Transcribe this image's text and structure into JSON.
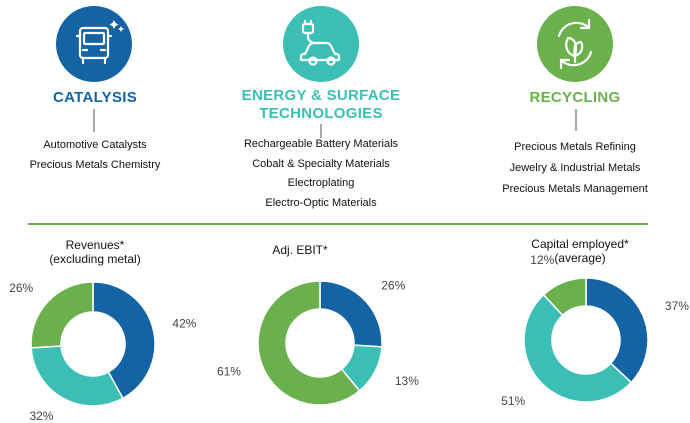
{
  "segments": [
    {
      "title": "CATALYSIS",
      "title_lines": [
        "CATALYSIS"
      ],
      "color": "#1464a5",
      "icon": "truck-icon",
      "items": [
        "Automotive Catalysts",
        "Precious Metals Chemistry"
      ]
    },
    {
      "title": "ENERGY & SURFACE TECHNOLOGIES",
      "title_lines": [
        "ENERGY & SURFACE",
        "TECHNOLOGIES"
      ],
      "color": "#3bbfb5",
      "icon": "electric-car-icon",
      "items": [
        "Rechargeable Battery Materials",
        "Cobalt & Specialty Materials",
        "Electroplating",
        "Electro-Optic Materials"
      ]
    },
    {
      "title": "RECYCLING",
      "title_lines": [
        "RECYCLING"
      ],
      "color": "#6ab04c",
      "icon": "recycle-leaf-icon",
      "items": [
        "Precious Metals Refining",
        "Jewelry & Industrial Metals",
        "Precious Metals Management"
      ]
    }
  ],
  "colors": {
    "catalysis": "#1464a5",
    "energy": "#3bbfb5",
    "recycling": "#6ab04c",
    "divider": "#6ab04c"
  },
  "chart_data": [
    {
      "type": "pie",
      "donut": true,
      "title_lines": [
        "Revenues*",
        "(excluding metal)"
      ],
      "categories": [
        "Catalysis",
        "Energy & Surface Technologies",
        "Recycling"
      ],
      "values": [
        42,
        32,
        26
      ],
      "labels": [
        "42%",
        "32%",
        "26%"
      ],
      "colors": [
        "#1464a5",
        "#3bbfb5",
        "#6ab04c"
      ]
    },
    {
      "type": "pie",
      "donut": true,
      "title_lines": [
        "Adj. EBIT*"
      ],
      "categories": [
        "Catalysis",
        "Energy & Surface Technologies",
        "Recycling"
      ],
      "values": [
        26,
        13,
        61
      ],
      "labels": [
        "26%",
        "13%",
        "61%"
      ],
      "colors": [
        "#1464a5",
        "#3bbfb5",
        "#6ab04c"
      ]
    },
    {
      "type": "pie",
      "donut": true,
      "title_lines": [
        "Capital employed*",
        "(average)"
      ],
      "categories": [
        "Catalysis",
        "Energy & Surface Technologies",
        "Recycling"
      ],
      "values": [
        37,
        51,
        12
      ],
      "labels": [
        "37%",
        "51%",
        "12%"
      ],
      "colors": [
        "#1464a5",
        "#3bbfb5",
        "#6ab04c"
      ]
    }
  ]
}
